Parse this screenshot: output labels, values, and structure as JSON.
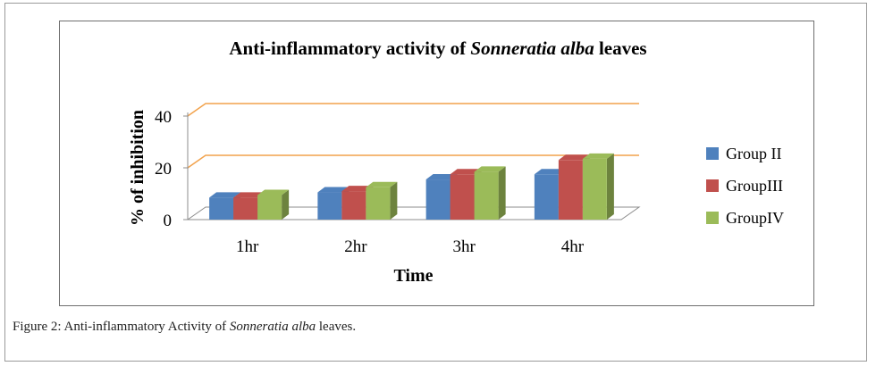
{
  "chart_data": {
    "type": "bar",
    "title": {
      "part1": "Anti-inflammatory  activity of ",
      "species": "Sonneratia alba",
      "part2": " leaves"
    },
    "xlabel": "Time",
    "ylabel": "% of inhibition",
    "categories": [
      "1hr",
      "2hr",
      "3hr",
      "4hr"
    ],
    "ylim": [
      0,
      40
    ],
    "yticks": [
      0,
      20,
      40
    ],
    "grid": true,
    "legend_position": "right",
    "series": [
      {
        "name": "Group II",
        "color": "#4f81bd",
        "values": [
          8.5,
          10.5,
          15.5,
          17.5
        ]
      },
      {
        "name": "GroupIII",
        "color": "#c0504d",
        "values": [
          8.5,
          11,
          17.5,
          23
        ]
      },
      {
        "name": "GroupIV",
        "color": "#9bbb59",
        "values": [
          9.5,
          12.5,
          18.5,
          23.5
        ]
      }
    ]
  },
  "caption": {
    "prefix": "Figure 2: Anti-inflammatory Activity of ",
    "species": "Sonneratia alba",
    "suffix": " leaves."
  }
}
